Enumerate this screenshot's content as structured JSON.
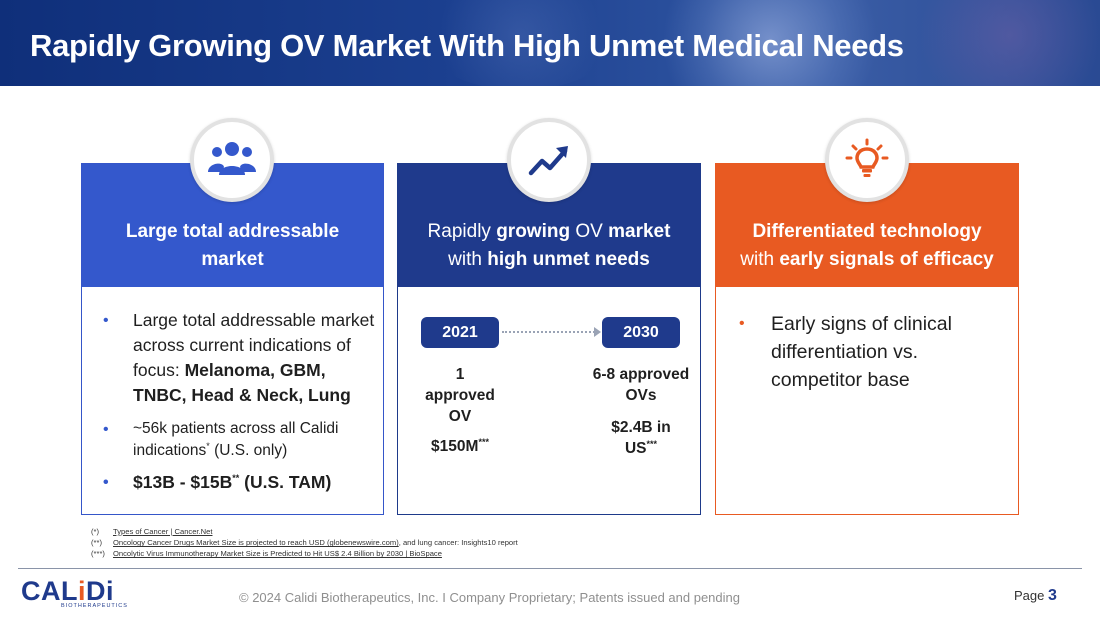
{
  "title": "Rapidly Growing OV Market With High Unmet Medical Needs",
  "colors": {
    "primary_blue": "#3458cc",
    "navy": "#1f3a8c",
    "orange": "#e85a22"
  },
  "cards": [
    {
      "icon": "people-group-icon",
      "heading": "Large total addressable market",
      "bullets": [
        {
          "text": "Large total addressable market across current indications of focus:",
          "bold": "Melanoma, GBM, TNBC, Head & Neck, Lung"
        },
        {
          "text_before": "~56k patients across all Calidi indications",
          "sup": "*",
          "text_after": " (U.S. only)"
        },
        {
          "text_before": "$13B - $15B",
          "sup": "**",
          "text_after": " (U.S. TAM)"
        }
      ]
    },
    {
      "icon": "trending-up-icon",
      "heading_parts": [
        "Rapidly ",
        "growing",
        " OV ",
        "market",
        "with ",
        "high unmet needs"
      ],
      "timeline": {
        "start": {
          "year": "2021",
          "line1": "1",
          "line2": "approved",
          "line3": "OV",
          "value": "$150M",
          "sup": "***"
        },
        "end": {
          "year": "2030",
          "line1": "6-8 approved",
          "line2": "OVs",
          "value_line1": "$2.4B in",
          "value_line2": "US",
          "sup": "***"
        }
      }
    },
    {
      "icon": "lightbulb-icon",
      "heading_line1": "Differentiated technology",
      "heading_line2_prefix": "with ",
      "heading_line2_bold": "early signals of efficacy",
      "bullets": [
        {
          "text": "Early signs of clinical differentiation vs. competitor base"
        }
      ]
    }
  ],
  "footnotes": [
    {
      "marker": "(*)",
      "link": "Types of Cancer | Cancer.Net",
      "rest": ""
    },
    {
      "marker": "(**)",
      "link": "Oncology Cancer Drugs Market Size is projected to reach USD (globenewswire.com)",
      "rest": ", and lung cancer: Insights10 report"
    },
    {
      "marker": "(***)",
      "link": "Oncolytic Virus Immunotherapy Market Size is Predicted to Hit US$ 2.4 Billion by 2030 | BioSpace",
      "rest": ""
    }
  ],
  "footer": {
    "logo_text_pre": "CAL",
    "logo_text_i": "i",
    "logo_text_post": "Di",
    "logo_sub": "BIOTHERAPEUTICS",
    "copyright": "© 2024 Calidi Biotherapeutics, Inc. I  Company Proprietary; Patents issued and pending",
    "page_label": "Page",
    "page_number": "3"
  }
}
